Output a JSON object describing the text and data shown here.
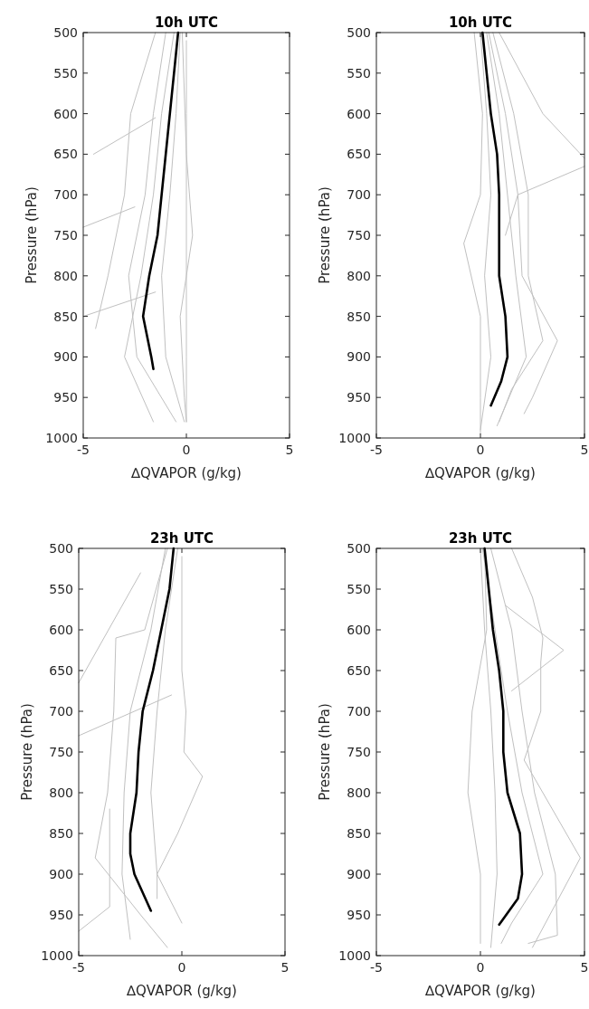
{
  "chart_data": [
    {
      "type": "line",
      "title": "10h UTC",
      "xlabel": "∆QVAPOR (g/kg)",
      "ylabel": "Pressure (hPa)",
      "xlim": [
        -5,
        5
      ],
      "xticks": [
        -5,
        0,
        5
      ],
      "ylim": [
        1000,
        500
      ],
      "yticks": [
        500,
        550,
        600,
        650,
        700,
        750,
        800,
        850,
        900,
        950,
        1000
      ],
      "series": [
        {
          "color": "#c0c0c0",
          "x": [
            -0.3,
            -0.5,
            -0.8,
            -1.2,
            -1.0,
            -0.1
          ],
          "values": [
            500,
            600,
            700,
            800,
            900,
            980
          ]
        },
        {
          "color": "#c0c0c0",
          "x": [
            -1,
            -1.6,
            -2,
            -2.8,
            -2.4,
            -0.5
          ],
          "values": [
            500,
            600,
            700,
            800,
            900,
            980
          ]
        },
        {
          "color": "#c0c0c0",
          "x": [
            -0.2,
            0,
            0.3,
            -0.3,
            -0.1,
            0
          ],
          "values": [
            500,
            650,
            750,
            850,
            950,
            980
          ]
        },
        {
          "color": "#c0c0c0",
          "x": [
            -1.5,
            -2.7,
            -3,
            -3.8,
            -4.4
          ],
          "values": [
            500,
            600,
            700,
            800,
            865
          ]
        },
        {
          "color": "#c0c0c0",
          "x": [
            -1.5,
            -4.5
          ],
          "values": [
            605,
            650
          ]
        },
        {
          "color": "#c0c0c0",
          "x": [
            -0.6,
            -1.2,
            -1.6,
            -2.2,
            -3,
            -1.6
          ],
          "values": [
            500,
            600,
            700,
            800,
            900,
            980
          ]
        },
        {
          "color": "#c0c0c0",
          "x": [
            -2.5,
            -5
          ],
          "values": [
            715,
            740
          ]
        },
        {
          "color": "#c0c0c0",
          "x": [
            -1.5,
            -5
          ],
          "values": [
            820,
            850
          ]
        },
        {
          "color": "#c0c0c0",
          "x": [
            0,
            0,
            0,
            0,
            0,
            0
          ],
          "values": [
            510,
            600,
            700,
            800,
            900,
            980
          ]
        },
        {
          "color": "#000000",
          "x": [
            -0.4,
            -0.6,
            -0.8,
            -1.0,
            -1.2,
            -1.4,
            -1.8,
            -2.1,
            -1.7,
            -1.6
          ],
          "values": [
            500,
            550,
            600,
            650,
            700,
            750,
            800,
            850,
            900,
            915
          ]
        }
      ]
    },
    {
      "type": "line",
      "title": "10h UTC",
      "xlabel": "∆QVAPOR (g/kg)",
      "ylabel": "Pressure (hPa)",
      "xlim": [
        -5,
        5
      ],
      "xticks": [
        -5,
        0,
        5
      ],
      "ylim": [
        1000,
        500
      ],
      "yticks": [
        500,
        550,
        600,
        650,
        700,
        750,
        800,
        850,
        900,
        950,
        1000
      ],
      "series": [
        {
          "color": "#c0c0c0",
          "x": [
            -0.3,
            0.1,
            0,
            -0.8,
            0,
            0,
            0
          ],
          "values": [
            500,
            600,
            700,
            760,
            850,
            950,
            995
          ]
        },
        {
          "color": "#c0c0c0",
          "x": [
            0.4,
            1.2,
            1.8,
            2,
            3.7,
            2.5,
            2.1
          ],
          "values": [
            500,
            600,
            700,
            800,
            880,
            950,
            970
          ]
        },
        {
          "color": "#c0c0c0",
          "x": [
            0.9,
            3,
            5
          ],
          "values": [
            500,
            600,
            655
          ]
        },
        {
          "color": "#c0c0c0",
          "x": [
            0.3,
            0.9,
            1.3,
            1.7,
            2.2,
            0.8
          ],
          "values": [
            500,
            600,
            700,
            800,
            900,
            985
          ]
        },
        {
          "color": "#c0c0c0",
          "x": [
            0,
            0.3,
            0.5,
            0.2,
            0.5,
            0
          ],
          "values": [
            500,
            600,
            700,
            800,
            900,
            990
          ]
        },
        {
          "color": "#c0c0c0",
          "x": [
            5,
            1.8,
            1.2
          ],
          "values": [
            665,
            700,
            750
          ]
        },
        {
          "color": "#c0c0c0",
          "x": [
            0.6,
            1.6,
            2.3,
            2.3,
            3,
            1.5,
            0.9
          ],
          "values": [
            500,
            600,
            700,
            800,
            880,
            940,
            980
          ]
        },
        {
          "color": "#000000",
          "x": [
            0.1,
            0.3,
            0.5,
            0.8,
            0.9,
            0.9,
            0.9,
            1.2,
            1.3,
            1.0,
            0.5
          ],
          "values": [
            500,
            550,
            600,
            650,
            700,
            750,
            800,
            850,
            900,
            930,
            960
          ]
        }
      ]
    },
    {
      "type": "line",
      "title": "23h UTC",
      "xlabel": "∆QVAPOR (g/kg)",
      "ylabel": "Pressure (hPa)",
      "xlim": [
        -5,
        5
      ],
      "xticks": [
        -5,
        0,
        5
      ],
      "ylim": [
        1000,
        500
      ],
      "yticks": [
        500,
        550,
        600,
        650,
        700,
        750,
        800,
        850,
        900,
        950,
        1000
      ],
      "series": [
        {
          "color": "#c0c0c0",
          "x": [
            0,
            0,
            0,
            0.2,
            0.1,
            1,
            -0.2,
            -1.2,
            -1.2
          ],
          "values": [
            510,
            600,
            650,
            700,
            750,
            780,
            850,
            900,
            930
          ]
        },
        {
          "color": "#c0c0c0",
          "x": [
            -0.7,
            -1.8,
            -3.2,
            -3.3,
            -3.6,
            -4.2,
            -2,
            -0.7
          ],
          "values": [
            500,
            600,
            610,
            700,
            800,
            880,
            950,
            990
          ]
        },
        {
          "color": "#c0c0c0",
          "x": [
            -2,
            -4,
            -5
          ],
          "values": [
            530,
            620,
            665
          ]
        },
        {
          "color": "#c0c0c0",
          "x": [
            -0.2,
            -0.8,
            -1.2,
            -1.5,
            -1.2,
            0
          ],
          "values": [
            500,
            600,
            700,
            800,
            900,
            960
          ]
        },
        {
          "color": "#c0c0c0",
          "x": [
            -0.5,
            -5
          ],
          "values": [
            680,
            730
          ]
        },
        {
          "color": "#c0c0c0",
          "x": [
            -0.8,
            -1.5,
            -2.5,
            -2.8,
            -2.9,
            -2.5
          ],
          "values": [
            500,
            600,
            700,
            800,
            900,
            980
          ]
        },
        {
          "color": "#c0c0c0",
          "x": [
            -3.5,
            -3.5,
            -5
          ],
          "values": [
            820,
            940,
            970
          ]
        },
        {
          "color": "#000000",
          "x": [
            -0.4,
            -0.6,
            -1.0,
            -1.4,
            -1.9,
            -2.1,
            -2.2,
            -2.5,
            -2.5,
            -2.3,
            -1.5
          ],
          "values": [
            500,
            550,
            600,
            650,
            700,
            750,
            800,
            850,
            875,
            900,
            945
          ]
        }
      ]
    },
    {
      "type": "line",
      "title": "23h UTC",
      "xlabel": "∆QVAPOR (g/kg)",
      "ylabel": "Pressure (hPa)",
      "xlim": [
        -5,
        5
      ],
      "xticks": [
        -5,
        0,
        5
      ],
      "ylim": [
        1000,
        500
      ],
      "yticks": [
        500,
        550,
        600,
        650,
        700,
        750,
        800,
        850,
        900,
        950,
        1000
      ],
      "series": [
        {
          "color": "#c0c0c0",
          "x": [
            0.2,
            0.3,
            -0.4,
            -0.6,
            0,
            0
          ],
          "values": [
            500,
            600,
            700,
            800,
            900,
            985
          ]
        },
        {
          "color": "#c0c0c0",
          "x": [
            1.5,
            2.5,
            3,
            2.9,
            2.9,
            2.1,
            4.8,
            2.5
          ],
          "values": [
            500,
            560,
            610,
            640,
            700,
            760,
            880,
            990
          ]
        },
        {
          "color": "#c0c0c0",
          "x": [
            0.5,
            1.5,
            2,
            2.6,
            3.6,
            3.7,
            2.3
          ],
          "values": [
            500,
            600,
            700,
            800,
            900,
            975,
            985
          ]
        },
        {
          "color": "#c0c0c0",
          "x": [
            0.1,
            0.7,
            1.3,
            2,
            3,
            1.5,
            1
          ],
          "values": [
            500,
            600,
            700,
            800,
            900,
            960,
            985
          ]
        },
        {
          "color": "#c0c0c0",
          "x": [
            0,
            0.2,
            0.5,
            0.7,
            0.8,
            0.5
          ],
          "values": [
            500,
            600,
            700,
            800,
            900,
            990
          ]
        },
        {
          "color": "#c0c0c0",
          "x": [
            1.2,
            4,
            1.5
          ],
          "values": [
            570,
            625,
            675
          ]
        },
        {
          "color": "#000000",
          "x": [
            0.2,
            0.4,
            0.6,
            0.9,
            1.1,
            1.1,
            1.3,
            1.9,
            2.0,
            1.8,
            0.9
          ],
          "values": [
            500,
            550,
            600,
            650,
            700,
            750,
            800,
            850,
            900,
            930,
            962
          ]
        }
      ]
    }
  ]
}
